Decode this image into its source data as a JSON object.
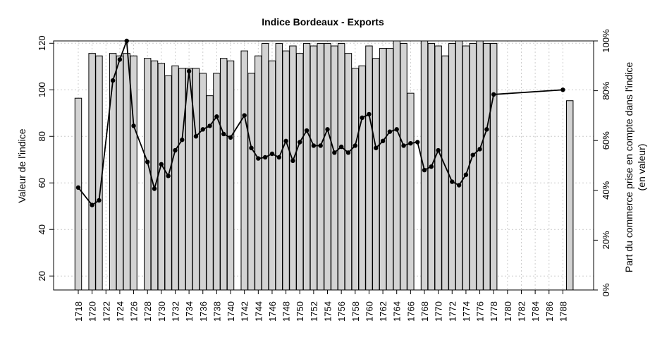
{
  "chart_data": {
    "type": "bar+line",
    "title": "Indice Bordeaux - Exports",
    "ylabel_left": "Valeur de l'indice",
    "ylabel_right": [
      "Part du commerce prise en compte dans l'indice",
      "(en valeur)"
    ],
    "ylim_left": [
      14,
      121
    ],
    "ylim_right": [
      0,
      1
    ],
    "yticks_left": [
      "20",
      "40",
      "60",
      "80",
      "100",
      "120"
    ],
    "yticks_right": [
      "0%",
      "20%",
      "40%",
      "60%",
      "80%",
      "100%"
    ],
    "xticks": [
      "1718",
      "1720",
      "1722",
      "1724",
      "1726",
      "1728",
      "1730",
      "1732",
      "1734",
      "1736",
      "1738",
      "1740",
      "1742",
      "1744",
      "1746",
      "1748",
      "1750",
      "1752",
      "1754",
      "1756",
      "1758",
      "1760",
      "1762",
      "1764",
      "1766",
      "1768",
      "1770",
      "1772",
      "1774",
      "1776",
      "1778",
      "1780",
      "1782",
      "1784",
      "1786",
      "1788"
    ],
    "years": [
      1718,
      1719,
      1720,
      1721,
      1722,
      1723,
      1724,
      1725,
      1726,
      1727,
      1728,
      1729,
      1730,
      1731,
      1732,
      1733,
      1734,
      1735,
      1736,
      1737,
      1738,
      1739,
      1740,
      1741,
      1742,
      1743,
      1744,
      1745,
      1746,
      1747,
      1748,
      1749,
      1750,
      1751,
      1752,
      1753,
      1754,
      1755,
      1756,
      1757,
      1758,
      1759,
      1760,
      1761,
      1762,
      1763,
      1764,
      1765,
      1766,
      1767,
      1768,
      1769,
      1770,
      1771,
      1772,
      1773,
      1774,
      1775,
      1776,
      1777,
      1778,
      1779,
      1780,
      1781,
      1782,
      1783,
      1784,
      1785,
      1786,
      1787,
      1788,
      1789
    ],
    "share": [
      0.77,
      null,
      0.95,
      0.94,
      null,
      0.95,
      0.94,
      0.95,
      0.94,
      null,
      0.93,
      0.92,
      0.91,
      0.86,
      0.9,
      0.89,
      0.89,
      0.89,
      0.87,
      0.78,
      0.87,
      0.93,
      0.92,
      null,
      0.96,
      0.87,
      0.94,
      0.99,
      0.92,
      0.99,
      0.96,
      0.98,
      0.95,
      0.99,
      0.98,
      0.99,
      0.99,
      0.98,
      0.99,
      0.95,
      0.89,
      0.9,
      0.98,
      0.93,
      0.97,
      0.97,
      1.0,
      0.99,
      0.79,
      null,
      1.0,
      0.99,
      0.98,
      0.94,
      0.99,
      1.0,
      0.98,
      0.99,
      1.0,
      0.99,
      0.99,
      null,
      null,
      null,
      null,
      null,
      null,
      null,
      null,
      null,
      null,
      0.76
    ],
    "series_index": [
      {
        "year": 1718,
        "value": 58
      },
      {
        "year": 1720,
        "value": 50.5
      },
      {
        "year": 1721,
        "value": 52.5
      },
      {
        "year": 1723,
        "value": 104
      },
      {
        "year": 1724,
        "value": 113
      },
      {
        "year": 1725,
        "value": 121
      },
      {
        "year": 1726,
        "value": 84.5
      },
      {
        "year": 1728,
        "value": 69
      },
      {
        "year": 1729,
        "value": 57.5
      },
      {
        "year": 1730,
        "value": 68
      },
      {
        "year": 1731,
        "value": 63
      },
      {
        "year": 1732,
        "value": 74
      },
      {
        "year": 1733,
        "value": 78.5
      },
      {
        "year": 1734,
        "value": 108
      },
      {
        "year": 1735,
        "value": 80
      },
      {
        "year": 1736,
        "value": 83
      },
      {
        "year": 1737,
        "value": 84.5
      },
      {
        "year": 1738,
        "value": 88.5
      },
      {
        "year": 1739,
        "value": 81
      },
      {
        "year": 1740,
        "value": 79.5
      },
      {
        "year": 1742,
        "value": 89
      },
      {
        "year": 1743,
        "value": 75
      },
      {
        "year": 1744,
        "value": 70.5
      },
      {
        "year": 1745,
        "value": 71
      },
      {
        "year": 1746,
        "value": 72.5
      },
      {
        "year": 1747,
        "value": 71
      },
      {
        "year": 1748,
        "value": 78
      },
      {
        "year": 1749,
        "value": 69.5
      },
      {
        "year": 1750,
        "value": 77.5
      },
      {
        "year": 1751,
        "value": 82.5
      },
      {
        "year": 1752,
        "value": 76
      },
      {
        "year": 1753,
        "value": 76
      },
      {
        "year": 1754,
        "value": 83
      },
      {
        "year": 1755,
        "value": 73
      },
      {
        "year": 1756,
        "value": 75.5
      },
      {
        "year": 1757,
        "value": 73
      },
      {
        "year": 1758,
        "value": 76
      },
      {
        "year": 1759,
        "value": 88
      },
      {
        "year": 1760,
        "value": 89.5
      },
      {
        "year": 1761,
        "value": 75
      },
      {
        "year": 1762,
        "value": 78
      },
      {
        "year": 1763,
        "value": 82
      },
      {
        "year": 1764,
        "value": 83
      },
      {
        "year": 1765,
        "value": 76
      },
      {
        "year": 1766,
        "value": 77
      },
      {
        "year": 1767,
        "value": 77.5
      },
      {
        "year": 1768,
        "value": 65.5
      },
      {
        "year": 1769,
        "value": 67
      },
      {
        "year": 1770,
        "value": 74
      },
      {
        "year": 1772,
        "value": 60.5
      },
      {
        "year": 1773,
        "value": 59
      },
      {
        "year": 1774,
        "value": 63.5
      },
      {
        "year": 1775,
        "value": 72
      },
      {
        "year": 1776,
        "value": 74.5
      },
      {
        "year": 1777,
        "value": 83
      },
      {
        "year": 1778,
        "value": 98
      },
      {
        "year": 1788,
        "value": 100
      }
    ],
    "bar_color": "#d3d3d3",
    "line_color": "#000000",
    "grid": true
  }
}
